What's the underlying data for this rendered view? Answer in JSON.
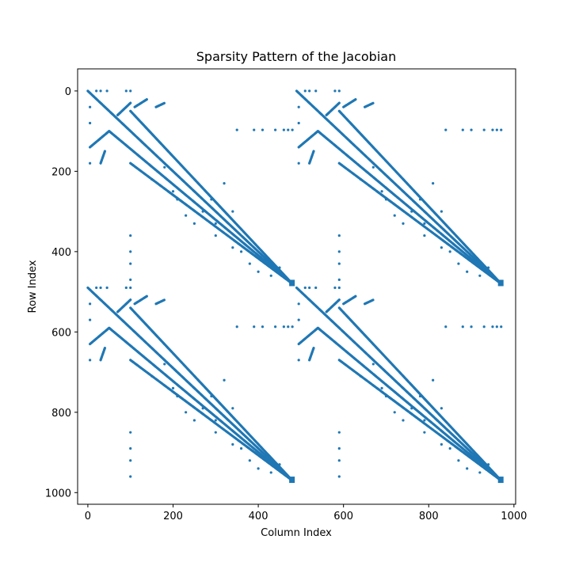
{
  "chart_data": {
    "type": "scatter",
    "title": "Sparsity Pattern of the Jacobian",
    "xlabel": "Column Index",
    "ylabel": "Row Index",
    "xlim": [
      -24,
      1004
    ],
    "ylim": [
      1029,
      -55
    ],
    "y_inverted": true,
    "grid": false,
    "legend": "none",
    "color": "#1f77b4",
    "xticks": [
      0,
      200,
      400,
      600,
      800,
      1000
    ],
    "yticks": [
      0,
      200,
      400,
      600,
      800,
      1000
    ],
    "block_size": 490,
    "block_offsets": [
      [
        0,
        0
      ],
      [
        490,
        0
      ],
      [
        0,
        490
      ],
      [
        490,
        490
      ]
    ],
    "block_pattern": {
      "lines": [
        [
          [
            0,
            0
          ],
          [
            480,
            480
          ]
        ],
        [
          [
            50,
            100
          ],
          [
            480,
            480
          ]
        ],
        [
          [
            100,
            50
          ],
          [
            480,
            480
          ]
        ],
        [
          [
            100,
            180
          ],
          [
            480,
            480
          ]
        ],
        [
          [
            5,
            140
          ],
          [
            50,
            100
          ]
        ],
        [
          [
            30,
            180
          ],
          [
            40,
            150
          ]
        ],
        [
          [
            70,
            60
          ],
          [
            100,
            30
          ]
        ],
        [
          [
            110,
            40
          ],
          [
            140,
            20
          ]
        ],
        [
          [
            160,
            40
          ],
          [
            180,
            30
          ]
        ]
      ],
      "points": [
        [
          20,
          0
        ],
        [
          30,
          0
        ],
        [
          45,
          0
        ],
        [
          90,
          0
        ],
        [
          100,
          0
        ],
        [
          5,
          40
        ],
        [
          5,
          80
        ],
        [
          5,
          180
        ],
        [
          100,
          360
        ],
        [
          100,
          400
        ],
        [
          100,
          430
        ],
        [
          100,
          470
        ],
        [
          350,
          97
        ],
        [
          390,
          97
        ],
        [
          410,
          97
        ],
        [
          440,
          97
        ],
        [
          460,
          97
        ],
        [
          470,
          97
        ],
        [
          480,
          97
        ],
        [
          150,
          220
        ],
        [
          200,
          250
        ],
        [
          210,
          270
        ],
        [
          230,
          310
        ],
        [
          270,
          300
        ],
        [
          290,
          270
        ],
        [
          300,
          360
        ],
        [
          320,
          230
        ],
        [
          340,
          390
        ],
        [
          360,
          400
        ],
        [
          380,
          430
        ],
        [
          400,
          450
        ],
        [
          420,
          420
        ],
        [
          450,
          440
        ],
        [
          300,
          330
        ],
        [
          250,
          330
        ],
        [
          180,
          190
        ],
        [
          340,
          300
        ],
        [
          430,
          460
        ]
      ]
    }
  }
}
